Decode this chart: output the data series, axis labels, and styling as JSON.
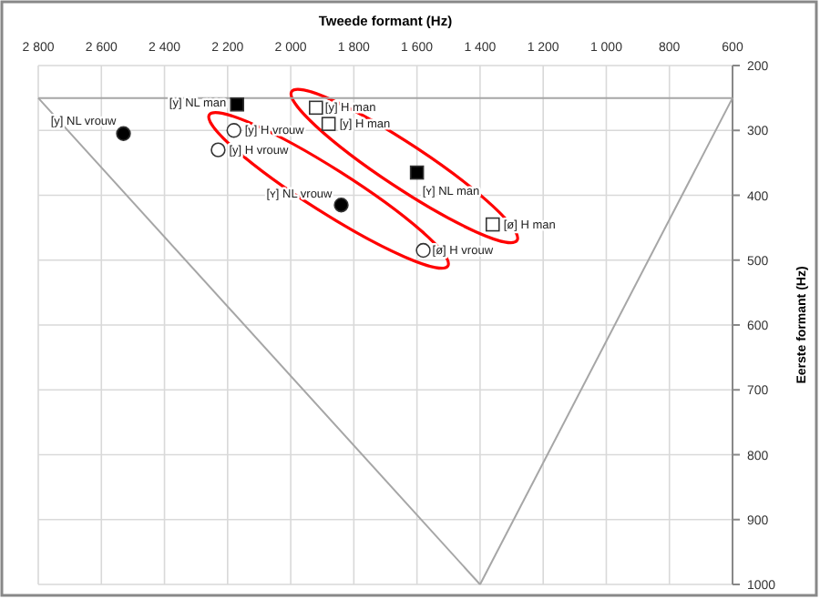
{
  "chart_data": {
    "type": "scatter",
    "xlabel": "Tweede formant (Hz)",
    "ylabel": "Eerste formant (Hz)",
    "xlim": [
      2800,
      600
    ],
    "ylim": [
      1000,
      200
    ],
    "xticks": [
      {
        "value": 2800,
        "label": "2 800"
      },
      {
        "value": 2600,
        "label": "2 600"
      },
      {
        "value": 2400,
        "label": "2 400"
      },
      {
        "value": 2200,
        "label": "2 200"
      },
      {
        "value": 2000,
        "label": "2 000"
      },
      {
        "value": 1800,
        "label": "1 800"
      },
      {
        "value": 1600,
        "label": "1 600"
      },
      {
        "value": 1400,
        "label": "1 400"
      },
      {
        "value": 1200,
        "label": "1 200"
      },
      {
        "value": 1000,
        "label": "1 000"
      },
      {
        "value": 800,
        "label": "800"
      },
      {
        "value": 600,
        "label": "600"
      }
    ],
    "yticks": [
      200,
      300,
      400,
      500,
      600,
      700,
      800,
      900,
      1000
    ],
    "grid": true,
    "series": [
      {
        "type": "line",
        "color": "#a6a6a6",
        "marker": "none",
        "x": [
          2800,
          600
        ],
        "values": [
          250,
          250
        ]
      },
      {
        "type": "line",
        "color": "#a6a6a6",
        "marker": "none",
        "x": [
          600,
          1400
        ],
        "values": [
          250,
          1000
        ]
      },
      {
        "type": "line",
        "color": "#a6a6a6",
        "marker": "none",
        "x": [
          1400,
          2800
        ],
        "values": [
          1000,
          250
        ]
      },
      {
        "name": "[y] NL man",
        "color": "#000000",
        "marker": "square",
        "x": [
          2170
        ],
        "values": [
          260
        ]
      },
      {
        "name": "[y] NL vrouw",
        "color": "#000000",
        "marker": "circle",
        "x": [
          2530
        ],
        "values": [
          305
        ]
      },
      {
        "name": "[y] H vrouw",
        "color": "#ffffff",
        "marker": "circle",
        "x": [
          2180
        ],
        "values": [
          300
        ]
      },
      {
        "name": "[y] H vrouw",
        "color": "#ffffff",
        "marker": "circle",
        "x": [
          2230
        ],
        "values": [
          330
        ]
      },
      {
        "name": "[y] H man",
        "color": "#ffffff",
        "marker": "square",
        "x": [
          1920
        ],
        "values": [
          265
        ]
      },
      {
        "name": "[y] H man",
        "color": "#ffffff",
        "marker": "square",
        "x": [
          1880
        ],
        "values": [
          290
        ]
      },
      {
        "name": "[ʏ] NL man",
        "color": "#000000",
        "marker": "square",
        "x": [
          1600
        ],
        "values": [
          365
        ]
      },
      {
        "name": "[ʏ] NL vrouw",
        "color": "#000000",
        "marker": "circle",
        "x": [
          1840
        ],
        "values": [
          415
        ]
      },
      {
        "name": "[ø] H man",
        "color": "#ffffff",
        "marker": "square",
        "x": [
          1360
        ],
        "values": [
          445
        ]
      },
      {
        "name": "[ø] H vrouw",
        "color": "#ffffff",
        "marker": "circle",
        "x": [
          1580
        ],
        "values": [
          485
        ]
      }
    ]
  }
}
